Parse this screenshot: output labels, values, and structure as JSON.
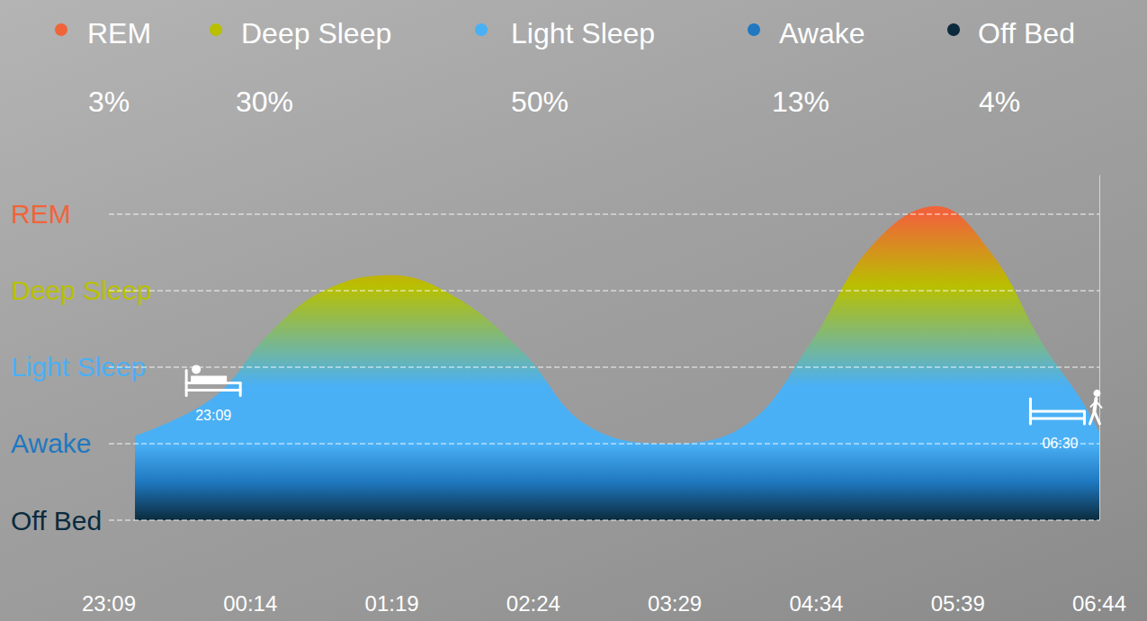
{
  "chart_data": {
    "type": "area",
    "stages": {
      "names": [
        "REM",
        "Deep Sleep",
        "Light Sleep",
        "Awake",
        "Off Bed"
      ],
      "colors": [
        "#f0643a",
        "#b8c000",
        "#4ab0f5",
        "#1f78c0",
        "#0b2b3d"
      ],
      "values": [
        3,
        30,
        50,
        13,
        4
      ],
      "value_labels": [
        "3%",
        "30%",
        "50%",
        "13%",
        "4%"
      ]
    },
    "x": [
      12,
      48,
      74,
      99,
      129,
      157,
      190,
      219,
      256,
      293,
      322,
      351,
      380,
      405,
      429,
      446,
      455
    ],
    "values": [
      1.1,
      1.6,
      2.45,
      3.0,
      3.2,
      2.95,
      2.2,
      1.25,
      1.0,
      1.25,
      2.3,
      3.6,
      4.1,
      3.5,
      2.3,
      1.6,
      1.15
    ],
    "xlim": [
      0,
      455
    ],
    "xticks": [
      {
        "value": 0,
        "label": "23:09"
      },
      {
        "value": 65,
        "label": "00:14"
      },
      {
        "value": 130,
        "label": "01:19"
      },
      {
        "value": 195,
        "label": "02:24"
      },
      {
        "value": 260,
        "label": "03:29"
      },
      {
        "value": 325,
        "label": "04:34"
      },
      {
        "value": 390,
        "label": "05:39"
      },
      {
        "value": 455,
        "label": "06:44"
      }
    ],
    "ylim": [
      0,
      4.5
    ],
    "yticks": [
      {
        "value": 0,
        "label": "Off Bed"
      },
      {
        "value": 1,
        "label": "Awake"
      },
      {
        "value": 2,
        "label": "Light Sleep"
      },
      {
        "value": 3,
        "label": "Deep Sleep"
      },
      {
        "value": 4,
        "label": "REM"
      }
    ],
    "grid": true,
    "annotations": [
      {
        "text": "23:09",
        "x": 48,
        "y": 1.37,
        "marker": "in_bed"
      },
      {
        "text": "06:30",
        "x": 437,
        "y": 1.0,
        "marker": "out_of_bed"
      }
    ]
  }
}
